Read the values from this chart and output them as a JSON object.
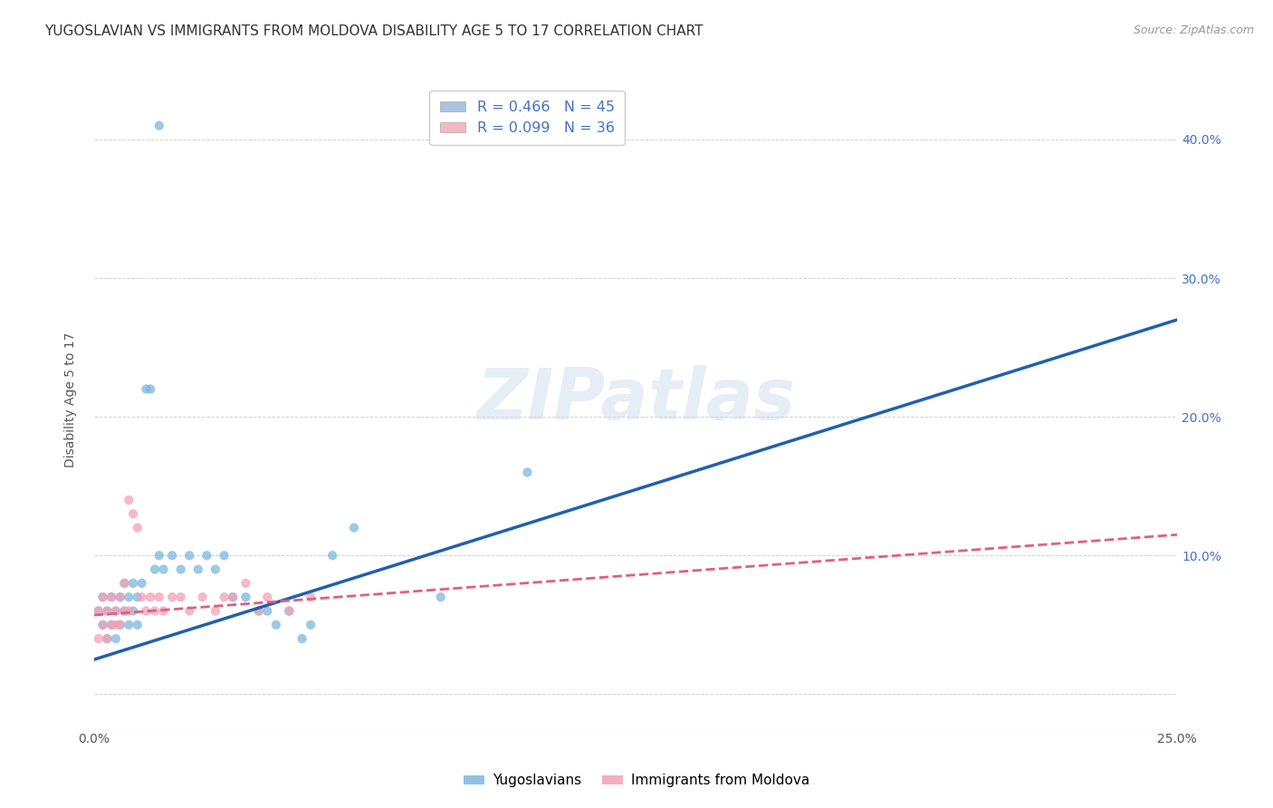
{
  "title": "YUGOSLAVIAN VS IMMIGRANTS FROM MOLDOVA DISABILITY AGE 5 TO 17 CORRELATION CHART",
  "source": "Source: ZipAtlas.com",
  "ylabel": "Disability Age 5 to 17",
  "xlim": [
    0.0,
    0.25
  ],
  "ylim": [
    -0.025,
    0.45
  ],
  "yticks": [
    0.0,
    0.1,
    0.2,
    0.3,
    0.4
  ],
  "xticks": [
    0.0,
    0.05,
    0.1,
    0.15,
    0.2,
    0.25
  ],
  "xtick_labels": [
    "0.0%",
    "",
    "",
    "",
    "",
    "25.0%"
  ],
  "ytick_labels_right": [
    "",
    "10.0%",
    "20.0%",
    "30.0%",
    "40.0%"
  ],
  "legend1_label": "R = 0.466   N = 45",
  "legend2_label": "R = 0.099   N = 36",
  "legend_color1": "#a8c4e0",
  "legend_color2": "#f4b8c1",
  "watermark": "ZIPatlas",
  "blue_scatter_x": [
    0.001,
    0.002,
    0.002,
    0.003,
    0.003,
    0.004,
    0.004,
    0.005,
    0.005,
    0.006,
    0.006,
    0.007,
    0.007,
    0.008,
    0.008,
    0.009,
    0.009,
    0.01,
    0.01,
    0.011,
    0.012,
    0.013,
    0.014,
    0.015,
    0.016,
    0.018,
    0.02,
    0.022,
    0.024,
    0.026,
    0.028,
    0.03,
    0.032,
    0.035,
    0.038,
    0.04,
    0.042,
    0.045,
    0.048,
    0.05,
    0.055,
    0.06,
    0.08,
    0.1,
    0.015
  ],
  "blue_scatter_y": [
    0.06,
    0.05,
    0.07,
    0.06,
    0.04,
    0.07,
    0.05,
    0.06,
    0.04,
    0.07,
    0.05,
    0.06,
    0.08,
    0.07,
    0.05,
    0.08,
    0.06,
    0.07,
    0.05,
    0.08,
    0.22,
    0.22,
    0.09,
    0.1,
    0.09,
    0.1,
    0.09,
    0.1,
    0.09,
    0.1,
    0.09,
    0.1,
    0.07,
    0.07,
    0.06,
    0.06,
    0.05,
    0.06,
    0.04,
    0.05,
    0.1,
    0.12,
    0.07,
    0.16,
    0.41
  ],
  "pink_scatter_x": [
    0.001,
    0.001,
    0.002,
    0.002,
    0.003,
    0.003,
    0.004,
    0.004,
    0.005,
    0.005,
    0.006,
    0.006,
    0.007,
    0.007,
    0.008,
    0.008,
    0.009,
    0.01,
    0.011,
    0.012,
    0.013,
    0.014,
    0.015,
    0.016,
    0.018,
    0.02,
    0.022,
    0.025,
    0.028,
    0.03,
    0.032,
    0.035,
    0.038,
    0.04,
    0.045,
    0.05
  ],
  "pink_scatter_y": [
    0.06,
    0.04,
    0.07,
    0.05,
    0.06,
    0.04,
    0.07,
    0.05,
    0.06,
    0.05,
    0.07,
    0.05,
    0.08,
    0.06,
    0.14,
    0.06,
    0.13,
    0.12,
    0.07,
    0.06,
    0.07,
    0.06,
    0.07,
    0.06,
    0.07,
    0.07,
    0.06,
    0.07,
    0.06,
    0.07,
    0.07,
    0.08,
    0.06,
    0.07,
    0.06,
    0.07
  ],
  "blue_line_x": [
    0.0,
    0.25
  ],
  "blue_line_y": [
    0.025,
    0.27
  ],
  "pink_line_x": [
    0.0,
    0.25
  ],
  "pink_line_y": [
    0.057,
    0.115
  ],
  "scatter_alpha": 0.75,
  "scatter_size": 55,
  "blue_color": "#7ab8e0",
  "pink_color": "#f4a0b5",
  "blue_line_color": "#2060b0",
  "pink_line_color": "#e06080",
  "title_fontsize": 11,
  "axis_label_fontsize": 10,
  "tick_fontsize": 10,
  "source_fontsize": 9,
  "background_color": "#ffffff",
  "grid_color": "#cccccc"
}
